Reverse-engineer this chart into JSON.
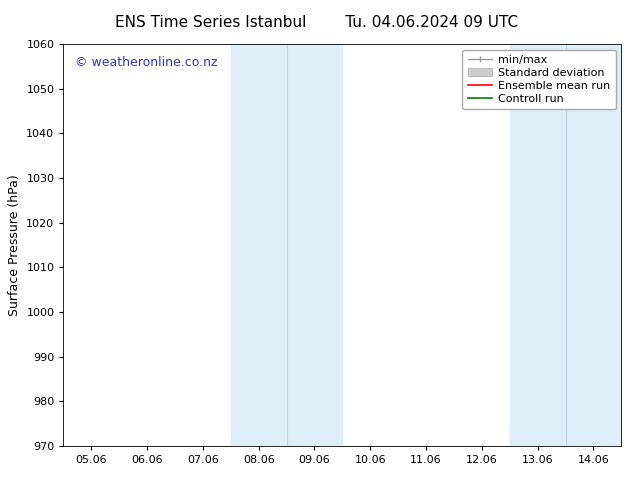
{
  "title": "ENS Time Series Istanbul",
  "title2": "Tu. 04.06.2024 09 UTC",
  "ylabel": "Surface Pressure (hPa)",
  "ylim": [
    970,
    1060
  ],
  "yticks": [
    970,
    980,
    990,
    1000,
    1010,
    1020,
    1030,
    1040,
    1050,
    1060
  ],
  "xlabels": [
    "05.06",
    "06.06",
    "07.06",
    "08.06",
    "09.06",
    "10.06",
    "11.06",
    "12.06",
    "13.06",
    "14.06"
  ],
  "xvalues": [
    0,
    1,
    2,
    3,
    4,
    5,
    6,
    7,
    8,
    9
  ],
  "xlim": [
    -0.5,
    9.5
  ],
  "shade_regions": [
    {
      "x_start": 2.5,
      "x_end": 4.5
    },
    {
      "x_start": 7.5,
      "x_end": 9.5
    }
  ],
  "shade_inner_lines": [
    3.5
  ],
  "shade_inner_lines2": [
    8.5
  ],
  "shade_color": "#ddeef8",
  "background_color": "#ffffff",
  "watermark_text": "© weatheronline.co.nz",
  "watermark_color": "#3333bb",
  "watermark_fontsize": 9,
  "title_fontsize": 11,
  "tick_fontsize": 8,
  "axis_label_fontsize": 9,
  "legend_fontsize": 8,
  "legend_loc": "upper right"
}
